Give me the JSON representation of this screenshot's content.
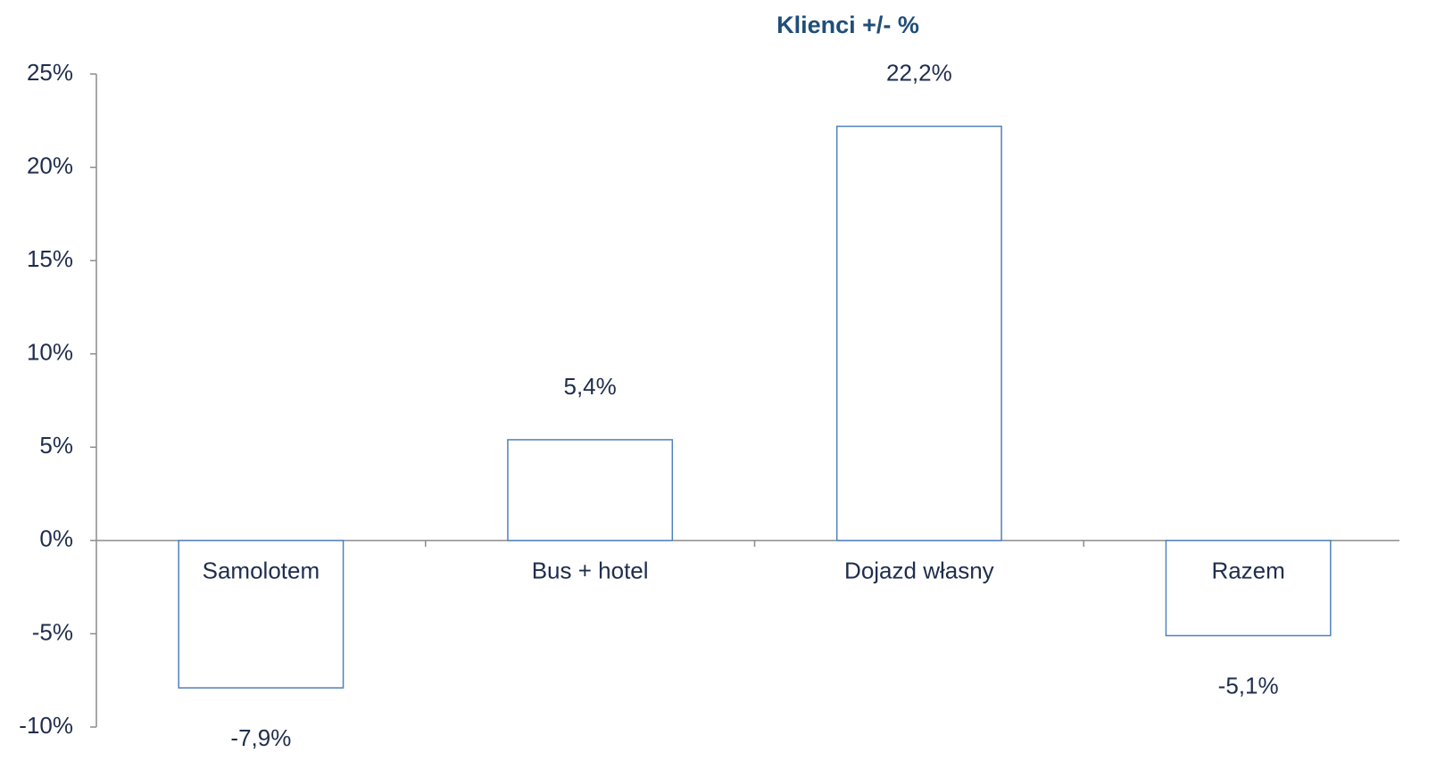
{
  "chart_data": {
    "type": "bar",
    "title": "Klienci +/- %",
    "categories": [
      "Samolotem",
      "Bus + hotel",
      "Dojazd własny",
      "Razem"
    ],
    "values": [
      -7.9,
      5.4,
      22.2,
      -5.1
    ],
    "value_labels": [
      "-7,9%",
      "5,4%",
      "22,2%",
      "-5,1%"
    ],
    "color": "#4f81bd",
    "ylim": [
      -10,
      25
    ],
    "yticks": [
      {
        "value": -10,
        "label": "-10%"
      },
      {
        "value": -5,
        "label": "-5%"
      },
      {
        "value": 0,
        "label": "0%"
      },
      {
        "value": 5,
        "label": "5%"
      },
      {
        "value": 10,
        "label": "10%"
      },
      {
        "value": 15,
        "label": "15%"
      },
      {
        "value": 20,
        "label": "20%"
      },
      {
        "value": 25,
        "label": "25%"
      }
    ],
    "grid": false
  }
}
